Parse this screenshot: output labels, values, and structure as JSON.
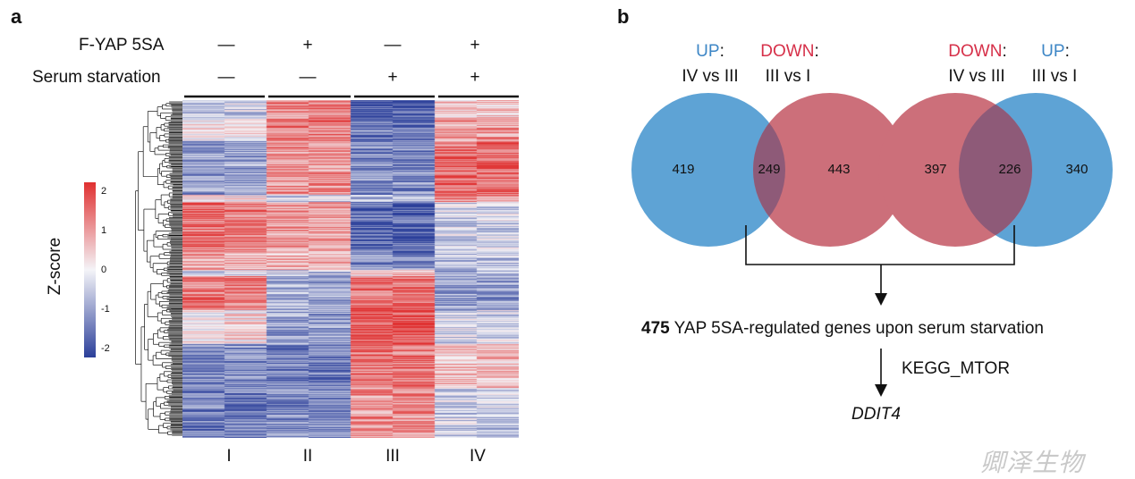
{
  "panel_a": {
    "letter": "a",
    "conditions": [
      {
        "label": "F-YAP 5SA",
        "signs": [
          "—",
          "+",
          "—",
          "+"
        ]
      },
      {
        "label": "Serum starvation",
        "signs": [
          "—",
          "—",
          "+",
          "+"
        ]
      }
    ],
    "columns": [
      "I",
      "II",
      "III",
      "IV"
    ],
    "colorbar": {
      "label": "Z-score",
      "ticks": [
        "2",
        "1",
        "0",
        "-1",
        "-2"
      ],
      "high_color": "#e03030",
      "mid_color": "#f4f4f8",
      "low_color": "#2b3f9a"
    }
  },
  "panel_b": {
    "letter": "b",
    "venn_left": {
      "header_up": "UP",
      "header_up_colon": ":",
      "header_down": "DOWN",
      "header_down_colon": ":",
      "sub_left": "IV vs III",
      "sub_right": "III vs I",
      "only_left": "419",
      "overlap": "249",
      "only_right": "443"
    },
    "venn_right": {
      "header_down": "DOWN",
      "header_down_colon": ":",
      "header_up": "UP",
      "header_up_colon": ":",
      "sub_left": "IV vs III",
      "sub_right": "III vs I",
      "only_left": "397",
      "overlap": "226",
      "only_right": "340"
    },
    "result_count": "475",
    "result_text": " YAP 5SA-regulated genes upon serum starvation",
    "pathway": "KEGG_MTOR",
    "gene": "DDIT4",
    "colors": {
      "up": "#3d86c6",
      "down": "#d63049",
      "circle_blue": "#5ea3d5",
      "circle_red": "#cc6f7a",
      "overlap": "#8e5a78"
    }
  },
  "watermark": "卿泽生物"
}
